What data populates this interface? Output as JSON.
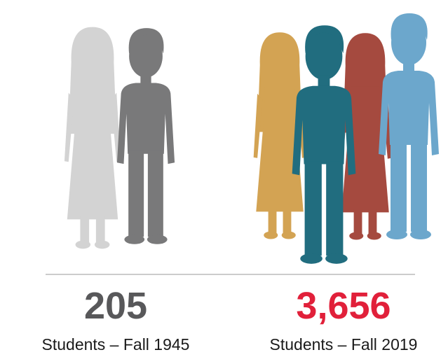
{
  "stats": [
    {
      "number": "205",
      "label": "Students – Fall 1945"
    },
    {
      "number": "3,656",
      "label": "Students – Fall 2019"
    }
  ]
}
